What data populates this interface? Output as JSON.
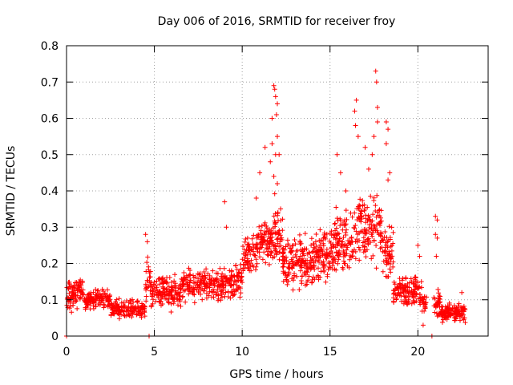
{
  "chart_data": {
    "type": "scatter",
    "title": "Day 006 of 2016, SRMTID for receiver froy",
    "xlabel": "GPS time / hours",
    "ylabel": "SRMTID / TECUs",
    "xlim": [
      0,
      24
    ],
    "ylim": [
      0,
      0.8
    ],
    "xticks": [
      0,
      5,
      10,
      15,
      20
    ],
    "xtick_labels": [
      "0",
      "5",
      "10",
      "15",
      "20"
    ],
    "yticks": [
      0,
      0.1,
      0.2,
      0.3,
      0.4,
      0.5,
      0.6,
      0.7,
      0.8
    ],
    "ytick_labels": [
      "0",
      "0.1",
      "0.2",
      "0.3",
      "0.4",
      "0.5",
      "0.6",
      "0.7",
      "0.8"
    ],
    "grid": true,
    "marker": "+",
    "series_color": "#ff0000",
    "seed": 6,
    "bands": [
      {
        "x": [
          0.0,
          0.5
        ],
        "lo": 0.06,
        "hi": 0.16,
        "n": 45
      },
      {
        "x": [
          0.5,
          1.0
        ],
        "lo": 0.07,
        "hi": 0.19,
        "n": 40
      },
      {
        "x": [
          1.0,
          2.5
        ],
        "lo": 0.06,
        "hi": 0.14,
        "n": 120
      },
      {
        "x": [
          2.5,
          4.5
        ],
        "lo": 0.04,
        "hi": 0.11,
        "n": 150
      },
      {
        "x": [
          4.5,
          4.8
        ],
        "lo": 0.08,
        "hi": 0.24,
        "n": 25
      },
      {
        "x": [
          4.8,
          6.5
        ],
        "lo": 0.06,
        "hi": 0.18,
        "n": 140
      },
      {
        "x": [
          6.5,
          9.0
        ],
        "lo": 0.08,
        "hi": 0.2,
        "n": 200
      },
      {
        "x": [
          9.0,
          10.0
        ],
        "lo": 0.08,
        "hi": 0.22,
        "n": 80
      },
      {
        "x": [
          10.0,
          10.8
        ],
        "lo": 0.14,
        "hi": 0.3,
        "n": 70
      },
      {
        "x": [
          10.8,
          11.8
        ],
        "lo": 0.18,
        "hi": 0.34,
        "n": 90
      },
      {
        "x": [
          11.8,
          12.3
        ],
        "lo": 0.16,
        "hi": 0.42,
        "n": 50
      },
      {
        "x": [
          12.3,
          14.0
        ],
        "lo": 0.1,
        "hi": 0.3,
        "n": 160
      },
      {
        "x": [
          14.0,
          15.2
        ],
        "lo": 0.12,
        "hi": 0.32,
        "n": 110
      },
      {
        "x": [
          15.2,
          16.5
        ],
        "lo": 0.14,
        "hi": 0.38,
        "n": 110
      },
      {
        "x": [
          16.5,
          18.0
        ],
        "lo": 0.16,
        "hi": 0.42,
        "n": 130
      },
      {
        "x": [
          18.0,
          18.6
        ],
        "lo": 0.12,
        "hi": 0.34,
        "n": 50
      },
      {
        "x": [
          18.6,
          20.1
        ],
        "lo": 0.07,
        "hi": 0.18,
        "n": 120
      },
      {
        "x": [
          20.1,
          20.5
        ],
        "lo": 0.05,
        "hi": 0.14,
        "n": 30
      },
      {
        "x": [
          20.9,
          21.3
        ],
        "lo": 0.04,
        "hi": 0.14,
        "n": 35
      },
      {
        "x": [
          21.3,
          22.7
        ],
        "lo": 0.03,
        "hi": 0.1,
        "n": 130
      }
    ],
    "points": [
      [
        0.0,
        0.0
      ],
      [
        4.7,
        0.0
      ],
      [
        20.8,
        0.0
      ],
      [
        4.5,
        0.28
      ],
      [
        4.6,
        0.26
      ],
      [
        9.0,
        0.37
      ],
      [
        9.1,
        0.3
      ],
      [
        10.8,
        0.38
      ],
      [
        11.0,
        0.45
      ],
      [
        11.3,
        0.52
      ],
      [
        11.7,
        0.6
      ],
      [
        11.8,
        0.69
      ],
      [
        11.85,
        0.68
      ],
      [
        11.9,
        0.66
      ],
      [
        12.0,
        0.64
      ],
      [
        11.95,
        0.61
      ],
      [
        11.7,
        0.53
      ],
      [
        11.9,
        0.5
      ],
      [
        12.0,
        0.55
      ],
      [
        12.1,
        0.5
      ],
      [
        11.6,
        0.48
      ],
      [
        11.8,
        0.44
      ],
      [
        12.0,
        0.42
      ],
      [
        15.4,
        0.5
      ],
      [
        15.6,
        0.45
      ],
      [
        15.9,
        0.4
      ],
      [
        16.4,
        0.62
      ],
      [
        16.5,
        0.65
      ],
      [
        16.45,
        0.58
      ],
      [
        16.6,
        0.55
      ],
      [
        17.0,
        0.52
      ],
      [
        17.2,
        0.46
      ],
      [
        17.4,
        0.5
      ],
      [
        17.6,
        0.73
      ],
      [
        17.65,
        0.7
      ],
      [
        17.7,
        0.63
      ],
      [
        17.7,
        0.59
      ],
      [
        17.5,
        0.55
      ],
      [
        18.2,
        0.59
      ],
      [
        18.3,
        0.57
      ],
      [
        18.2,
        0.53
      ],
      [
        18.4,
        0.45
      ],
      [
        18.3,
        0.43
      ],
      [
        20.0,
        0.25
      ],
      [
        20.1,
        0.22
      ],
      [
        20.2,
        0.15
      ],
      [
        20.3,
        0.03
      ],
      [
        21.0,
        0.33
      ],
      [
        21.1,
        0.32
      ],
      [
        21.0,
        0.28
      ],
      [
        21.1,
        0.27
      ],
      [
        21.05,
        0.22
      ],
      [
        22.5,
        0.12
      ]
    ]
  }
}
